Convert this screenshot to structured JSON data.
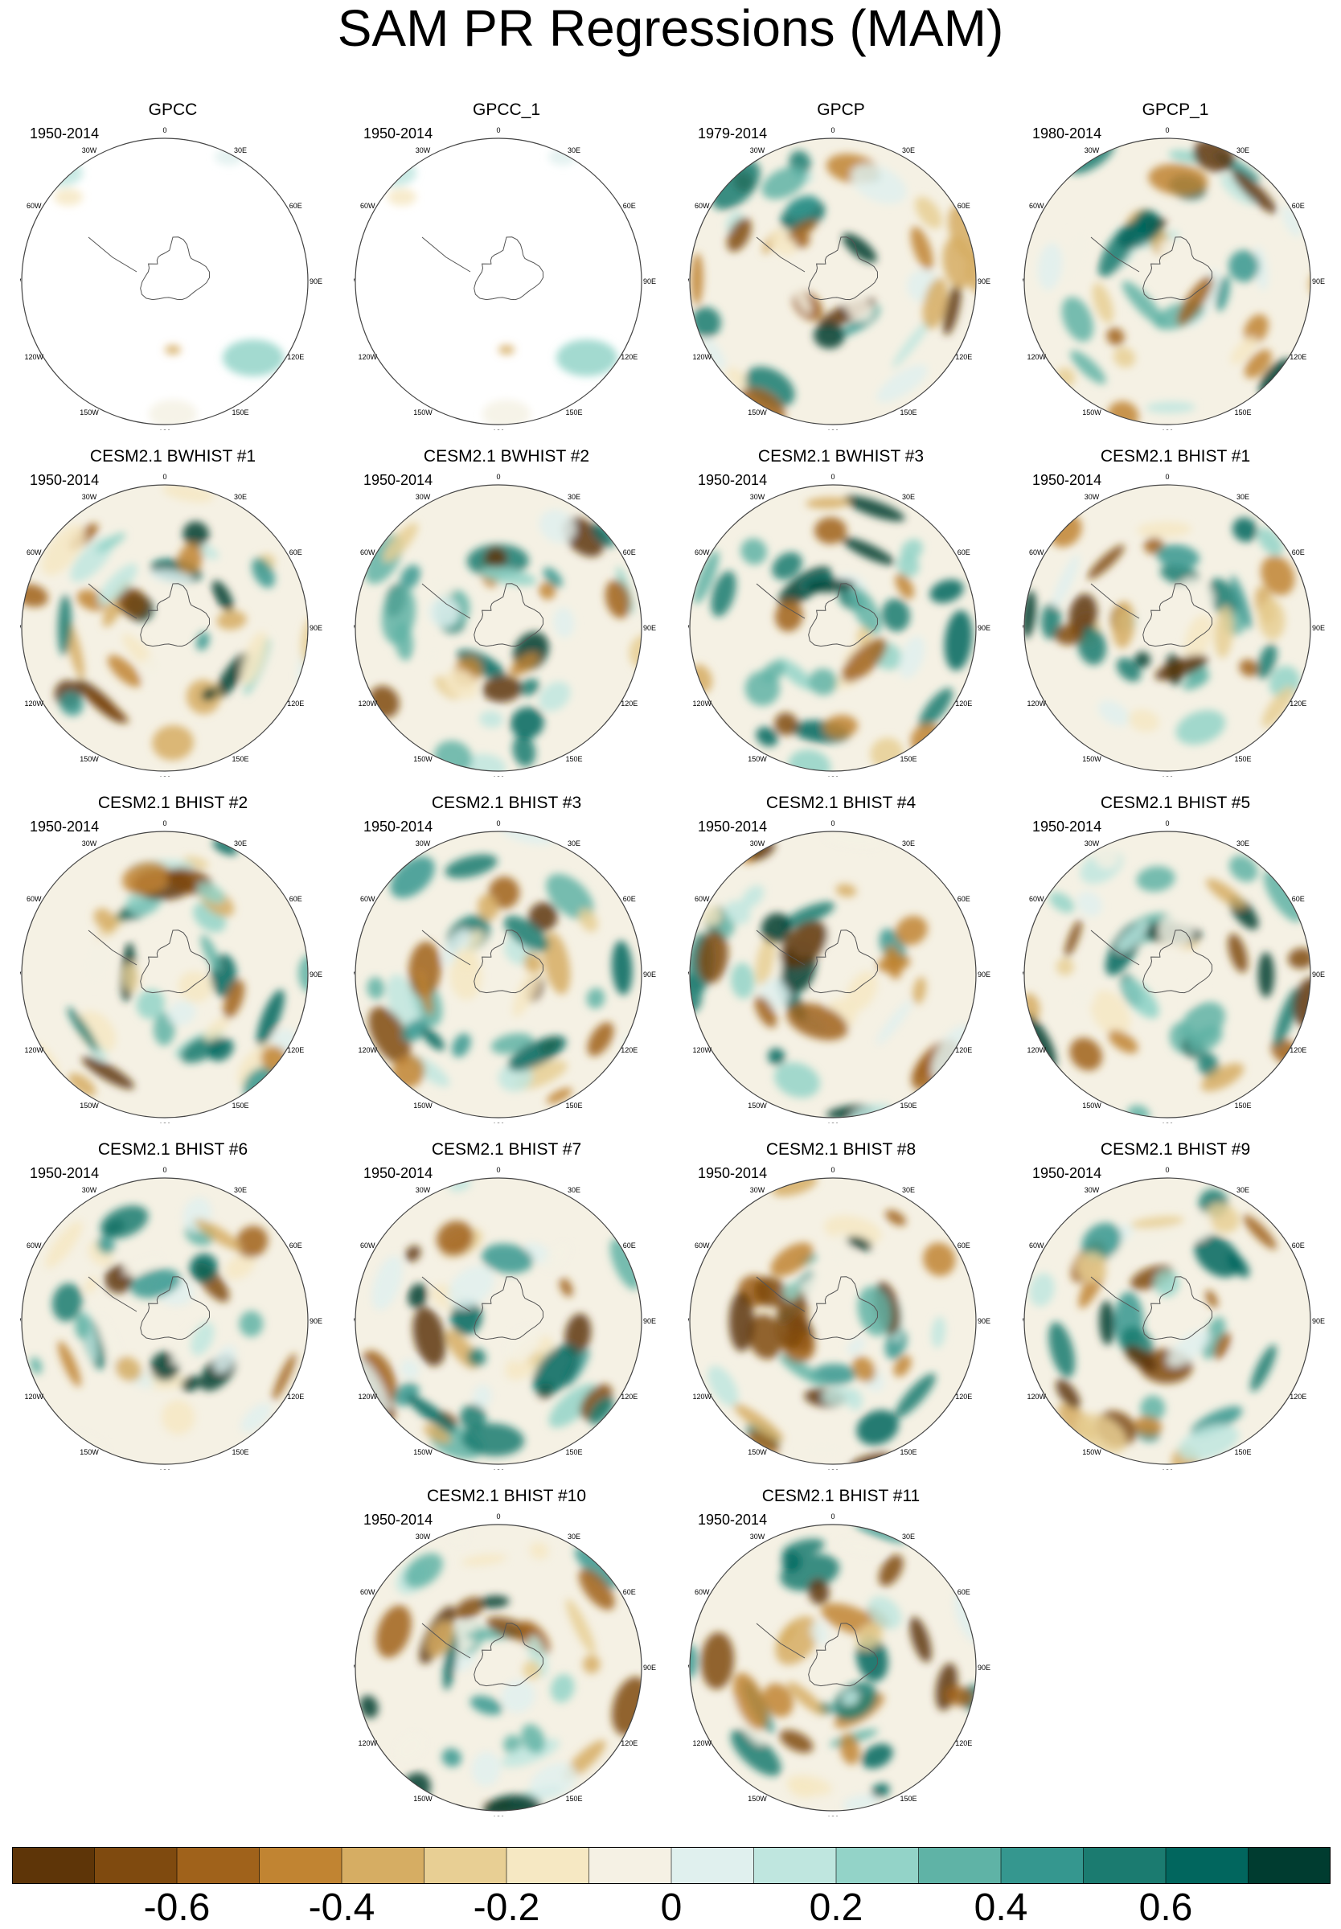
{
  "title": "SAM PR Regressions (MAM)",
  "longitude_labels": [
    "0",
    "30E",
    "60E",
    "90E",
    "120E",
    "150E",
    "180",
    "150W",
    "120W",
    "90W",
    "60W",
    "30W"
  ],
  "chart_data": {
    "type": "polar contour maps (south polar stereographic)",
    "panels": [
      {
        "title": "GPCC",
        "period": "1950-2014",
        "coverage": "land"
      },
      {
        "title": "GPCC_1",
        "period": "1950-2014",
        "coverage": "land"
      },
      {
        "title": "GPCP",
        "period": "1979-2014",
        "coverage": "full"
      },
      {
        "title": "GPCP_1",
        "period": "1980-2014",
        "coverage": "full"
      },
      {
        "title": "CESM2.1 BWHIST #1",
        "period": "1950-2014",
        "coverage": "full"
      },
      {
        "title": "CESM2.1 BWHIST #2",
        "period": "1950-2014",
        "coverage": "full"
      },
      {
        "title": "CESM2.1 BWHIST #3",
        "period": "1950-2014",
        "coverage": "full"
      },
      {
        "title": "CESM2.1 BHIST #1",
        "period": "1950-2014",
        "coverage": "full"
      },
      {
        "title": "CESM2.1 BHIST #2",
        "period": "1950-2014",
        "coverage": "full"
      },
      {
        "title": "CESM2.1 BHIST #3",
        "period": "1950-2014",
        "coverage": "full"
      },
      {
        "title": "CESM2.1 BHIST #4",
        "period": "1950-2014",
        "coverage": "full"
      },
      {
        "title": "CESM2.1 BHIST #5",
        "period": "1950-2014",
        "coverage": "full"
      },
      {
        "title": "CESM2.1 BHIST #6",
        "period": "1950-2014",
        "coverage": "full"
      },
      {
        "title": "CESM2.1 BHIST #7",
        "period": "1950-2014",
        "coverage": "full"
      },
      {
        "title": "CESM2.1 BHIST #8",
        "period": "1950-2014",
        "coverage": "full"
      },
      {
        "title": "CESM2.1 BHIST #9",
        "period": "1950-2014",
        "coverage": "full"
      },
      {
        "title": "CESM2.1 BHIST #10",
        "period": "1950-2014",
        "coverage": "full"
      },
      {
        "title": "CESM2.1 BHIST #11",
        "period": "1950-2014",
        "coverage": "full"
      }
    ],
    "colorbar": {
      "tick_labels": [
        "-0.6",
        "-0.4",
        "-0.2",
        "0",
        "0.2",
        "0.4",
        "0.6"
      ],
      "tick_values": [
        -0.6,
        -0.4,
        -0.2,
        0,
        0.2,
        0.4,
        0.6
      ],
      "range": [
        -0.8,
        0.8
      ],
      "colors": [
        "#5e3508",
        "#7f4a0f",
        "#a0621b",
        "#c18432",
        "#d6ad63",
        "#e8cf94",
        "#f6e8c3",
        "#f5f1e4",
        "#e0f0ee",
        "#bfe6df",
        "#93d3c8",
        "#5fb3a6",
        "#35978f",
        "#1b7b70",
        "#01665e",
        "#003c30"
      ]
    }
  }
}
